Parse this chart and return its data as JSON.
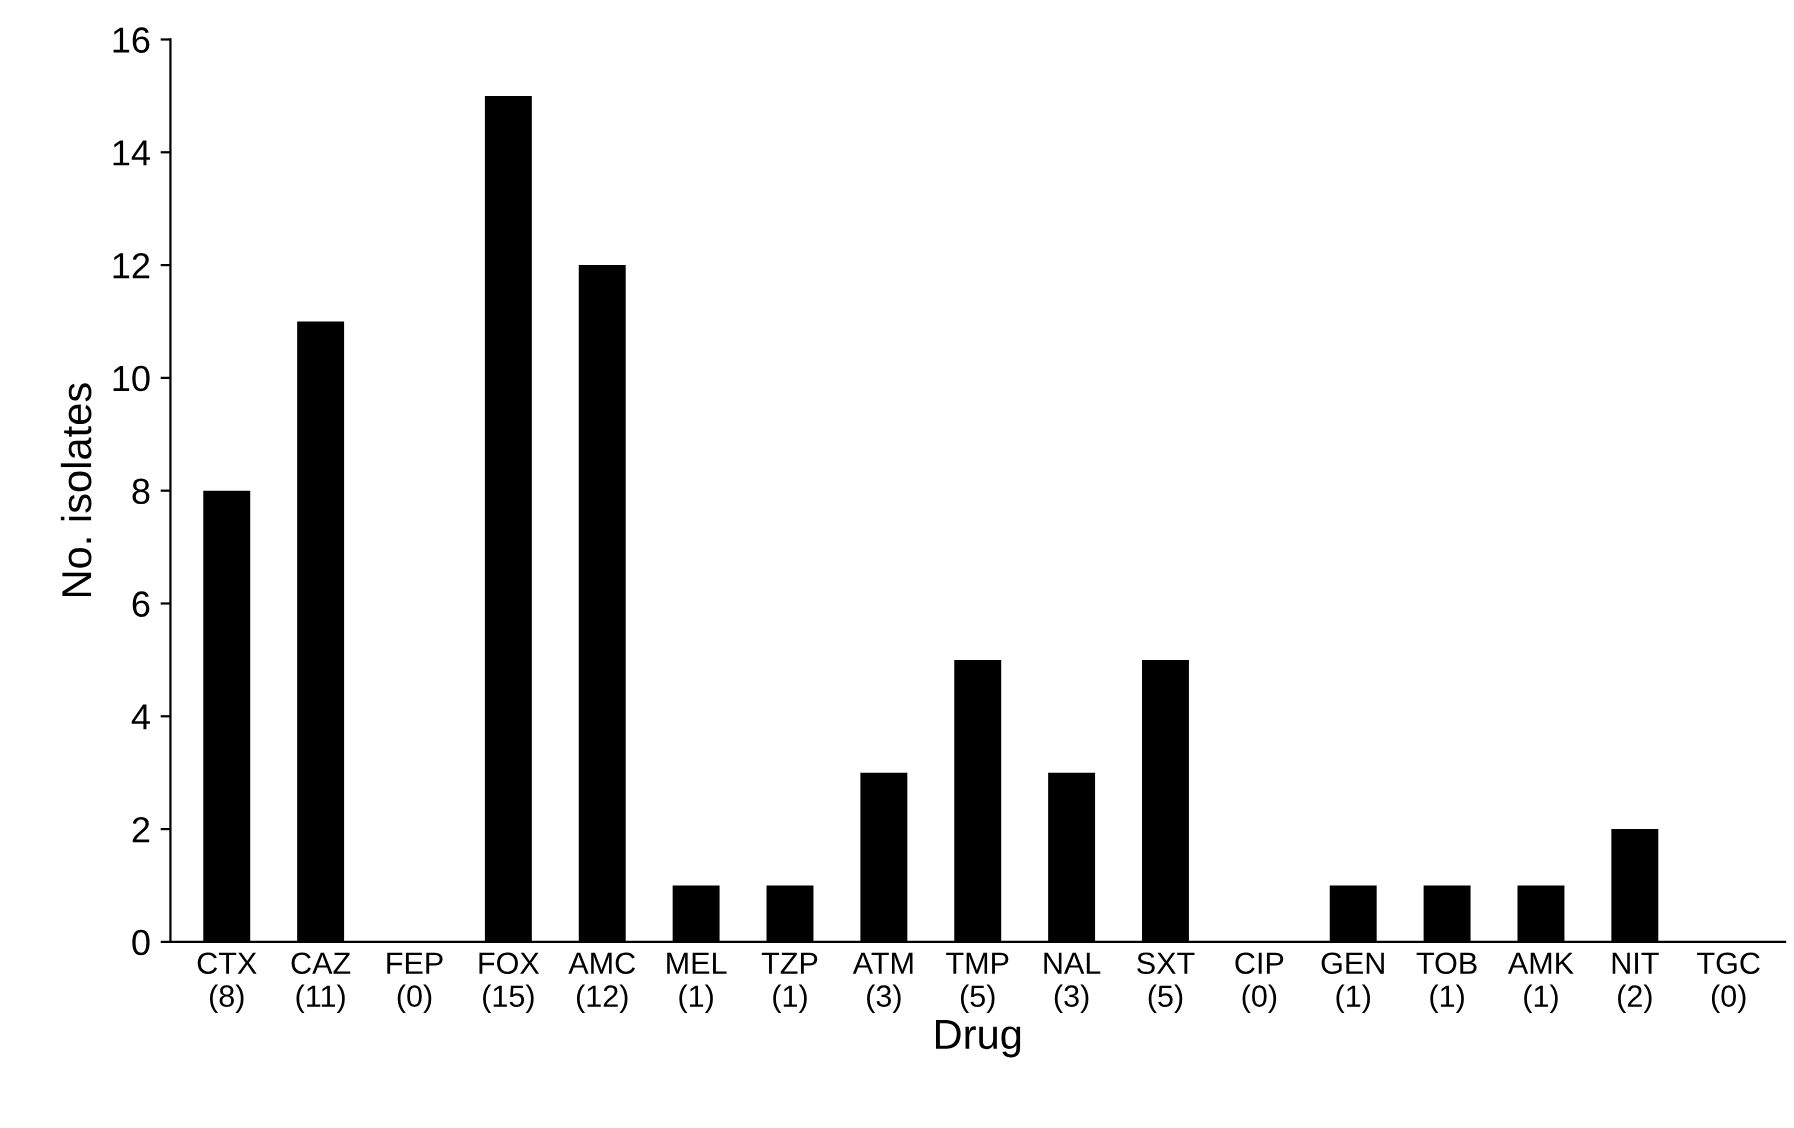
{
  "chart_data": {
    "type": "bar",
    "xlabel": "Drug",
    "ylabel": "No. isolates",
    "categories": [
      "CTX\n(8)",
      "CAZ\n(11)",
      "FEP\n(0)",
      "FOX\n(15)",
      "AMC\n(12)",
      "MEL\n(1)",
      "TZP\n(1)",
      "ATM\n(3)",
      "TMP\n(5)",
      "NAL\n(3)",
      "SXT\n(5)",
      "CIP\n(0)",
      "GEN\n(1)",
      "TOB\n(1)",
      "AMK\n(1)",
      "NIT\n(2)",
      "TGC\n(0)"
    ],
    "values": [
      8,
      11,
      0,
      15,
      12,
      1,
      1,
      3,
      5,
      3,
      5,
      0,
      1,
      1,
      1,
      2,
      0
    ],
    "color": "#000000",
    "ylim": [
      0,
      16
    ],
    "yticks": [
      0,
      2,
      4,
      6,
      8,
      10,
      12,
      14,
      16
    ],
    "grid": false
  }
}
